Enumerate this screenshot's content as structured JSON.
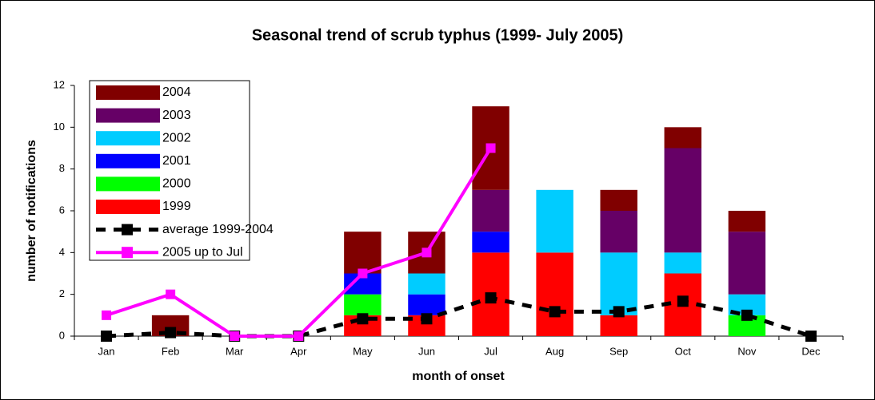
{
  "chart_data": {
    "type": "bar",
    "title": "Seasonal trend of scrub typhus (1999- July 2005)",
    "x_label": "month of onset",
    "y_label": "number of notifications",
    "categories": [
      "Jan",
      "Feb",
      "Mar",
      "Apr",
      "May",
      "Jun",
      "Jul",
      "Aug",
      "Sep",
      "Oct",
      "Nov",
      "Dec"
    ],
    "stacked": true,
    "ylim": [
      0,
      12
    ],
    "yticks": [
      0,
      2,
      4,
      6,
      8,
      10,
      12
    ],
    "series": [
      {
        "name": "1999",
        "color": "#ff0000",
        "values": [
          0,
          0,
          0,
          0,
          1,
          1,
          4,
          4,
          1,
          3,
          0,
          0
        ]
      },
      {
        "name": "2000",
        "color": "#00ff00",
        "values": [
          0,
          0,
          0,
          0,
          1,
          0,
          0,
          0,
          0,
          0,
          1,
          0
        ]
      },
      {
        "name": "2001",
        "color": "#0000ff",
        "values": [
          0,
          0,
          0,
          0,
          1,
          1,
          1,
          0,
          0,
          0,
          0,
          0
        ]
      },
      {
        "name": "2002",
        "color": "#00ccff",
        "values": [
          0,
          0,
          0,
          0,
          0,
          1,
          0,
          3,
          3,
          1,
          1,
          0
        ]
      },
      {
        "name": "2003",
        "color": "#660066",
        "values": [
          0,
          0,
          0,
          0,
          0,
          0,
          2,
          0,
          2,
          5,
          3,
          0
        ]
      },
      {
        "name": "2004",
        "color": "#800000",
        "values": [
          0,
          1,
          0,
          0,
          2,
          2,
          4,
          0,
          1,
          1,
          1,
          0
        ]
      },
      {
        "name": "average 1999-2004",
        "type": "line",
        "dashed": true,
        "color": "#000000",
        "values": [
          0,
          0.17,
          0,
          0,
          0.83,
          0.83,
          1.83,
          1.17,
          1.17,
          1.67,
          1,
          0
        ]
      },
      {
        "name": "2005 up to Jul",
        "type": "line",
        "color": "#ff00ff",
        "values": [
          1,
          2,
          0,
          0,
          3,
          4,
          9,
          null,
          null,
          null,
          null,
          null
        ]
      }
    ]
  }
}
